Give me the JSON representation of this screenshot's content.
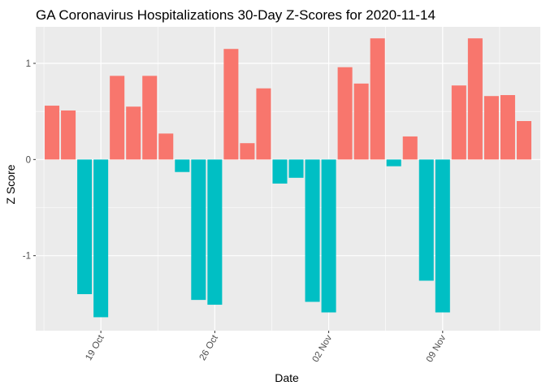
{
  "chart_data": {
    "type": "bar",
    "title": "GA Coronavirus Hospitalizations 30-Day Z-Scores for 2020-11-14",
    "xlabel": "Date",
    "ylabel": "Z Score",
    "x": [
      "2020-10-16",
      "2020-10-17",
      "2020-10-18",
      "2020-10-19",
      "2020-10-20",
      "2020-10-21",
      "2020-10-22",
      "2020-10-23",
      "2020-10-24",
      "2020-10-25",
      "2020-10-26",
      "2020-10-27",
      "2020-10-28",
      "2020-10-29",
      "2020-10-30",
      "2020-10-31",
      "2020-11-01",
      "2020-11-02",
      "2020-11-03",
      "2020-11-04",
      "2020-11-05",
      "2020-11-06",
      "2020-11-07",
      "2020-11-08",
      "2020-11-09",
      "2020-11-10",
      "2020-11-11",
      "2020-11-12",
      "2020-11-13",
      "2020-11-14"
    ],
    "values": [
      0.56,
      0.51,
      -1.4,
      -1.64,
      0.87,
      0.55,
      0.87,
      0.27,
      -0.13,
      -1.46,
      -1.51,
      1.15,
      0.17,
      0.74,
      -0.25,
      -0.19,
      -1.48,
      -1.59,
      0.96,
      0.79,
      1.26,
      -0.07,
      0.24,
      -1.26,
      -1.59,
      0.77,
      1.26,
      0.66,
      0.67,
      0.4
    ],
    "positive_color": "#F8766D",
    "negative_color": "#00BFC4",
    "ylim": [
      -1.78,
      1.38
    ],
    "yticks": [
      -1,
      0,
      1
    ],
    "ytick_labels": [
      "-1",
      "0",
      "1"
    ],
    "xticks": [
      "2020-10-19",
      "2020-10-26",
      "2020-11-02",
      "2020-11-09"
    ],
    "xtick_labels": [
      "19 Oct",
      "26 Oct",
      "02 Nov",
      "09 Nov"
    ],
    "xlim": [
      "2020-10-15",
      "2020-11-15"
    ],
    "grid": true,
    "legend": "none",
    "panel_background": "#EBEBEB",
    "grid_color": "#FFFFFF"
  }
}
